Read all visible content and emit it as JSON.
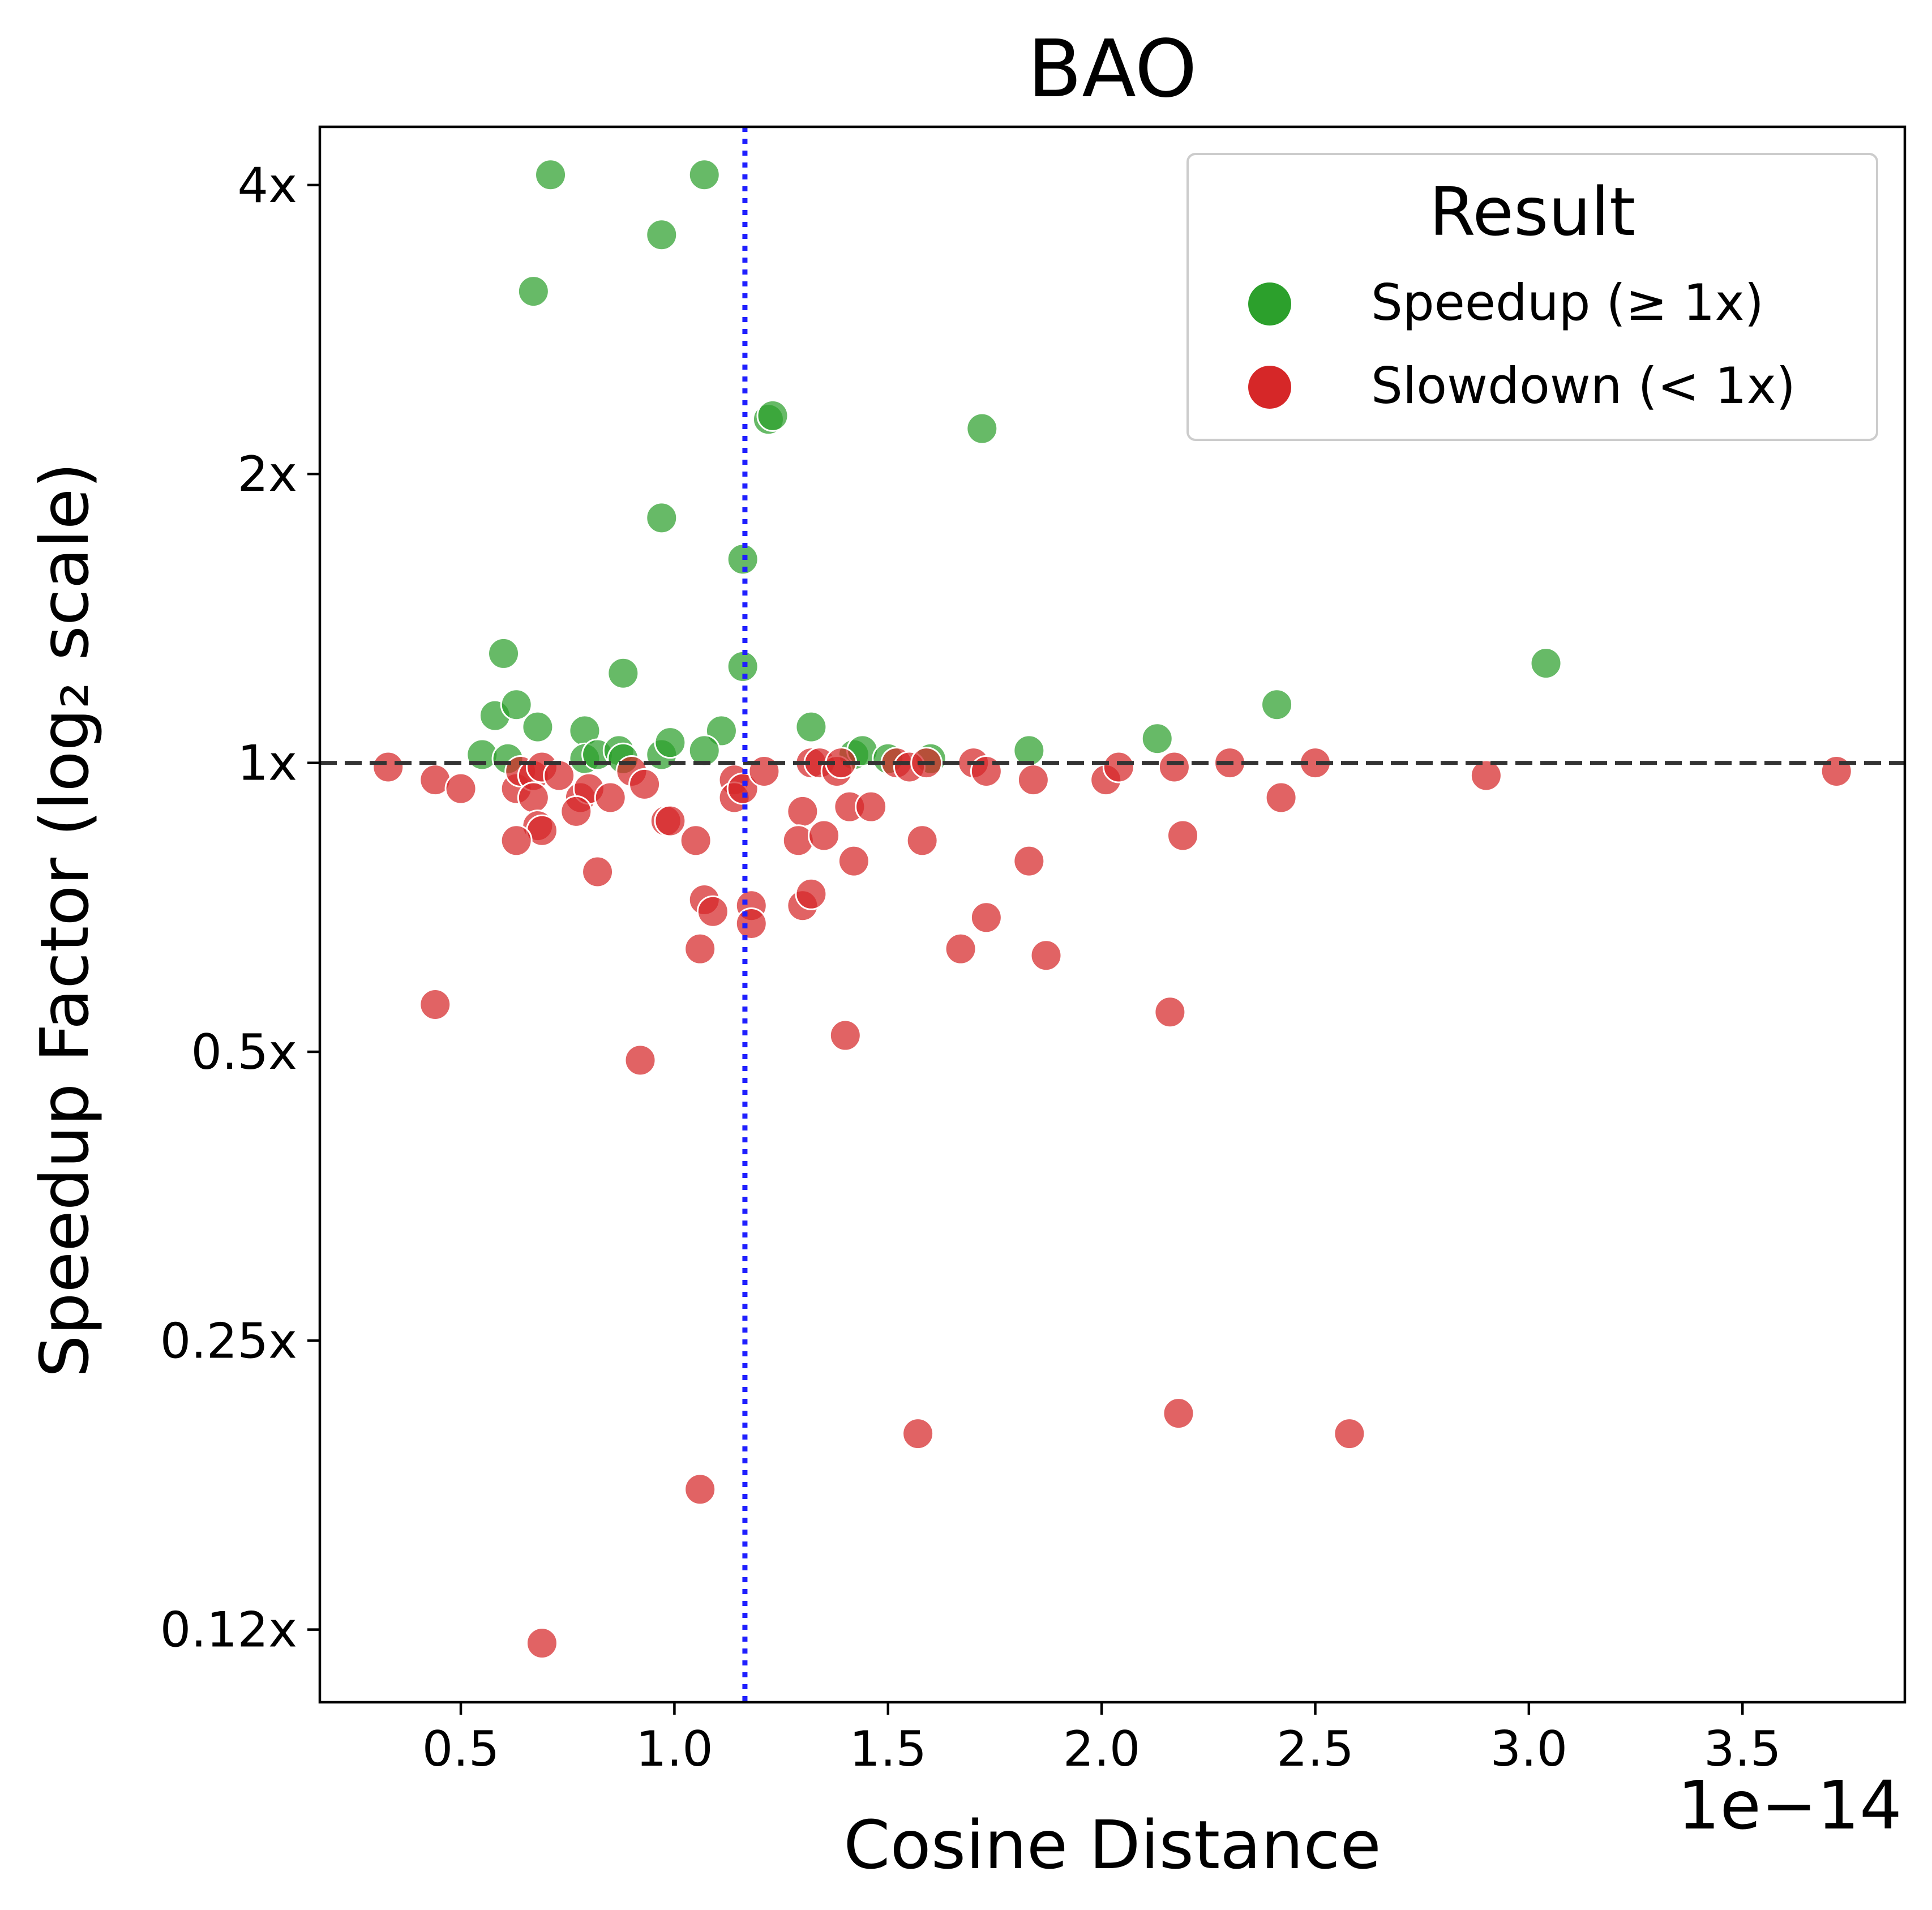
{
  "chart_data": {
    "type": "scatter",
    "title": "BAO",
    "xlabel": "Cosine Distance",
    "ylabel": "Speedup Factor (log₂ scale)",
    "x_offset_label": "1e−14",
    "x_scale_factor": 1e-14,
    "y_scale": "log2",
    "xlim": [
      0.17,
      3.88
    ],
    "ylim": [
      0.105,
      4.6
    ],
    "x_ticks": [
      {
        "value": 0.5,
        "label": "0.5"
      },
      {
        "value": 1.0,
        "label": "1.0"
      },
      {
        "value": 1.5,
        "label": "1.5"
      },
      {
        "value": 2.0,
        "label": "2.0"
      },
      {
        "value": 2.5,
        "label": "2.5"
      },
      {
        "value": 3.0,
        "label": "3.0"
      },
      {
        "value": 3.5,
        "label": "3.5"
      }
    ],
    "y_ticks": [
      {
        "value": 0.125,
        "label": "0.12x"
      },
      {
        "value": 0.25,
        "label": "0.25x"
      },
      {
        "value": 0.5,
        "label": "0.5x"
      },
      {
        "value": 1,
        "label": "1x"
      },
      {
        "value": 2,
        "label": "2x"
      },
      {
        "value": 4,
        "label": "4x"
      }
    ],
    "reference_lines": [
      {
        "orientation": "horizontal",
        "value": 1.0,
        "style": "dashed",
        "color": "#333333"
      },
      {
        "orientation": "vertical",
        "value": 1.165,
        "style": "dotted",
        "color": "#1f1fff"
      }
    ],
    "legend": {
      "title": "Result",
      "position": "top-right",
      "entries": [
        {
          "label": "Speedup (≥ 1x)",
          "color": "#2ca02c"
        },
        {
          "label": "Slowdown (< 1x)",
          "color": "#d62728"
        }
      ]
    },
    "series": [
      {
        "name": "Speedup (≥ 1x)",
        "color": "#2ca02c",
        "points": [
          [
            0.71,
            4.1
          ],
          [
            1.07,
            4.1
          ],
          [
            0.97,
            3.55
          ],
          [
            0.67,
            3.1
          ],
          [
            1.22,
            2.28
          ],
          [
            1.23,
            2.3
          ],
          [
            1.72,
            2.23
          ],
          [
            0.97,
            1.8
          ],
          [
            1.16,
            1.63
          ],
          [
            0.6,
            1.3
          ],
          [
            0.88,
            1.24
          ],
          [
            1.16,
            1.26
          ],
          [
            3.04,
            1.27
          ],
          [
            0.58,
            1.12
          ],
          [
            0.63,
            1.15
          ],
          [
            0.68,
            1.09
          ],
          [
            0.79,
            1.08
          ],
          [
            1.11,
            1.08
          ],
          [
            1.32,
            1.09
          ],
          [
            2.13,
            1.06
          ],
          [
            2.41,
            1.15
          ],
          [
            0.55,
            1.02
          ],
          [
            0.61,
            1.01
          ],
          [
            0.79,
            1.01
          ],
          [
            0.82,
            1.02
          ],
          [
            0.87,
            1.03
          ],
          [
            0.88,
            1.01
          ],
          [
            0.97,
            1.02
          ],
          [
            0.99,
            1.05
          ],
          [
            1.07,
            1.03
          ],
          [
            1.42,
            1.02
          ],
          [
            1.44,
            1.03
          ],
          [
            1.5,
            1.01
          ],
          [
            1.6,
            1.01
          ],
          [
            1.83,
            1.03
          ]
        ]
      },
      {
        "name": "Slowdown (< 1x)",
        "color": "#d62728",
        "points": [
          [
            0.33,
            0.99
          ],
          [
            0.44,
            0.96
          ],
          [
            0.5,
            0.94
          ],
          [
            0.63,
            0.94
          ],
          [
            0.64,
            0.98
          ],
          [
            0.67,
            0.97
          ],
          [
            0.69,
            0.99
          ],
          [
            0.67,
            0.92
          ],
          [
            0.73,
            0.97
          ],
          [
            0.78,
            0.92
          ],
          [
            0.8,
            0.94
          ],
          [
            0.77,
            0.89
          ],
          [
            0.85,
            0.92
          ],
          [
            0.9,
            0.98
          ],
          [
            0.93,
            0.95
          ],
          [
            0.68,
            0.86
          ],
          [
            0.69,
            0.85
          ],
          [
            0.63,
            0.83
          ],
          [
            0.82,
            0.77
          ],
          [
            0.98,
            0.87
          ],
          [
            0.99,
            0.87
          ],
          [
            1.05,
            0.83
          ],
          [
            1.14,
            0.96
          ],
          [
            1.14,
            0.92
          ],
          [
            1.16,
            0.94
          ],
          [
            1.21,
            0.98
          ],
          [
            1.3,
            0.89
          ],
          [
            1.32,
            1.0
          ],
          [
            1.34,
            1.0
          ],
          [
            1.38,
            0.98
          ],
          [
            1.39,
            1.0
          ],
          [
            1.41,
            0.9
          ],
          [
            1.46,
            0.9
          ],
          [
            1.52,
            1.0
          ],
          [
            1.55,
            0.99
          ],
          [
            1.59,
            1.0
          ],
          [
            1.7,
            1.0
          ],
          [
            1.73,
            0.98
          ],
          [
            1.84,
            0.96
          ],
          [
            2.01,
            0.96
          ],
          [
            2.04,
            0.99
          ],
          [
            2.17,
            0.99
          ],
          [
            2.3,
            1.0
          ],
          [
            2.42,
            0.92
          ],
          [
            2.5,
            1.0
          ],
          [
            2.9,
            0.97
          ],
          [
            3.72,
            0.98
          ],
          [
            1.29,
            0.83
          ],
          [
            1.35,
            0.84
          ],
          [
            1.42,
            0.79
          ],
          [
            1.58,
            0.83
          ],
          [
            1.83,
            0.79
          ],
          [
            2.19,
            0.84
          ],
          [
            1.07,
            0.72
          ],
          [
            1.09,
            0.7
          ],
          [
            1.18,
            0.71
          ],
          [
            1.18,
            0.68
          ],
          [
            1.3,
            0.71
          ],
          [
            1.32,
            0.73
          ],
          [
            1.06,
            0.64
          ],
          [
            1.67,
            0.64
          ],
          [
            1.73,
            0.69
          ],
          [
            1.87,
            0.63
          ],
          [
            0.44,
            0.56
          ],
          [
            0.92,
            0.49
          ],
          [
            1.4,
            0.52
          ],
          [
            2.16,
            0.55
          ],
          [
            1.57,
            0.2
          ],
          [
            2.18,
            0.21
          ],
          [
            2.58,
            0.2
          ],
          [
            1.06,
            0.175
          ],
          [
            0.69,
            0.121
          ]
        ]
      }
    ]
  }
}
